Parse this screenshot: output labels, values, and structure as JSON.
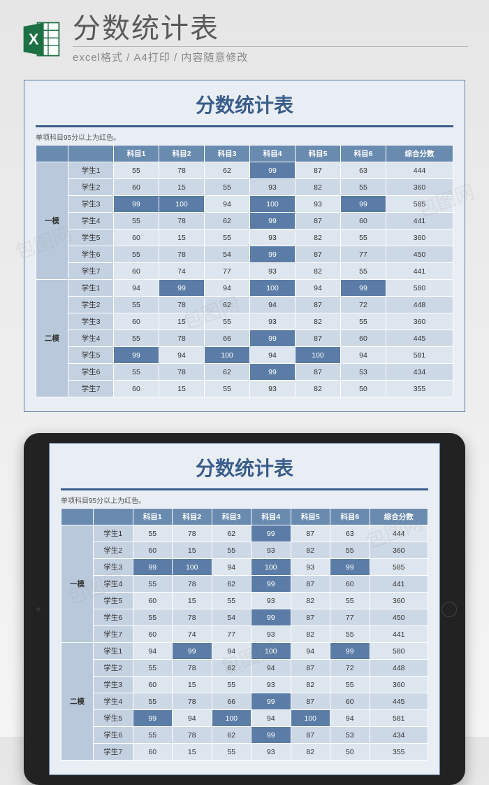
{
  "header": {
    "title": "分数统计表",
    "subtitle": "excel格式 / A4打印 / 内容随意修改",
    "icon_name": "excel-icon",
    "icon_bg": "#1d7044",
    "icon_letter": "X"
  },
  "sheet": {
    "title": "分数统计表",
    "note": "单项科目95分以上为红色。",
    "highlight_threshold": 95,
    "colors": {
      "page_bg": "#e9eef5",
      "border": "#5a7aa0",
      "title_color": "#3a5d8a",
      "header_bg": "#6a8bb0",
      "header_fg": "#ffffff",
      "group_bg": "#b9c9db",
      "row_alt_a": "#dde5ee",
      "row_alt_b": "#ccd8e6",
      "name_bg": "#c4d1e1",
      "highlight_bg": "#5b7ca6",
      "highlight_fg": "#ffffff"
    },
    "columns": [
      "",
      "",
      "科目1",
      "科目2",
      "科目3",
      "科目4",
      "科目5",
      "科目6",
      "综合分数"
    ],
    "groups": [
      {
        "label": "一模",
        "rows": [
          {
            "name": "学生1",
            "scores": [
              55,
              78,
              62,
              99,
              87,
              63
            ],
            "total": 444
          },
          {
            "name": "学生2",
            "scores": [
              60,
              15,
              55,
              93,
              82,
              55
            ],
            "total": 360
          },
          {
            "name": "学生3",
            "scores": [
              99,
              100,
              94,
              100,
              93,
              99
            ],
            "total": 585
          },
          {
            "name": "学生4",
            "scores": [
              55,
              78,
              62,
              99,
              87,
              60
            ],
            "total": 441
          },
          {
            "name": "学生5",
            "scores": [
              60,
              15,
              55,
              93,
              82,
              55
            ],
            "total": 360
          },
          {
            "name": "学生6",
            "scores": [
              55,
              78,
              54,
              99,
              87,
              77
            ],
            "total": 450
          },
          {
            "name": "学生7",
            "scores": [
              60,
              74,
              77,
              93,
              82,
              55
            ],
            "total": 441
          }
        ]
      },
      {
        "label": "二模",
        "rows": [
          {
            "name": "学生1",
            "scores": [
              94,
              99,
              94,
              100,
              94,
              99
            ],
            "total": 580
          },
          {
            "name": "学生2",
            "scores": [
              55,
              78,
              62,
              94,
              87,
              72
            ],
            "total": 448
          },
          {
            "name": "学生3",
            "scores": [
              60,
              15,
              55,
              93,
              82,
              55
            ],
            "total": 360
          },
          {
            "name": "学生4",
            "scores": [
              55,
              78,
              66,
              99,
              87,
              60
            ],
            "total": 445
          },
          {
            "name": "学生5",
            "scores": [
              99,
              94,
              100,
              94,
              100,
              94
            ],
            "total": 581
          },
          {
            "name": "学生6",
            "scores": [
              55,
              78,
              62,
              99,
              87,
              53
            ],
            "total": 434
          },
          {
            "name": "学生7",
            "scores": [
              60,
              15,
              55,
              93,
              82,
              50
            ],
            "total": 355
          }
        ]
      }
    ]
  },
  "watermark_text": "包图网"
}
